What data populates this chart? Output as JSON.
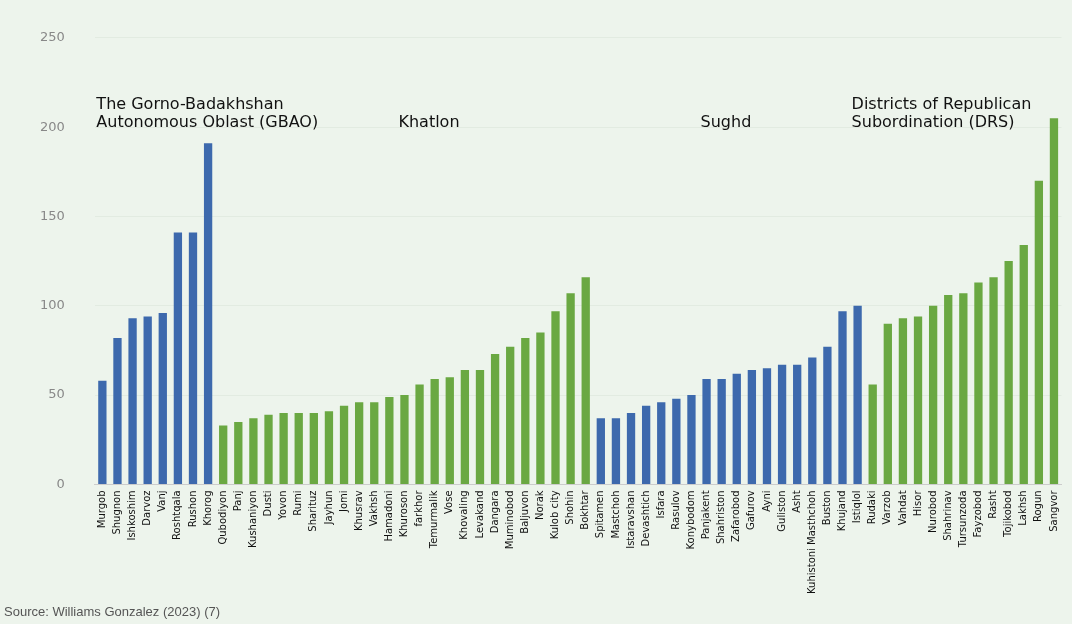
{
  "chart_data": {
    "type": "bar",
    "categories": [
      "Murgob",
      "Shugnon",
      "Ishkoshim",
      "Darvoz",
      "Vanj",
      "Roshtqala",
      "Rushon",
      "Khorog",
      "Qubodiyon",
      "Panj",
      "Kushaniyon",
      "Dusti",
      "Yovon",
      "Rumi",
      "Sharituz",
      "Jayhun",
      "Jomi",
      "Khusrav",
      "Vakhsh",
      "Hamadoni",
      "Khuroson",
      "farkhor",
      "Temurmalik",
      "Vose",
      "Khovaling",
      "Levakand",
      "Dangara",
      "Muminobod",
      "Baljuvon",
      "Norak",
      "Kulob city",
      "Shohin",
      "Bokhtar",
      "Spitamen",
      "Mastchoh",
      "Istaravshan",
      "Devashtich",
      "Isfara",
      "Rasulov",
      "Konybodom",
      "Panjakent",
      "Shahriston",
      "Zafarobod",
      "Gafurov",
      "Ayni",
      "Guliston",
      "Asht",
      "Kuhistoni Masthchoh",
      "Buston",
      "Khujand",
      "Istiqlol",
      "Rudaki",
      "Varzob",
      "Vahdat",
      "Hisor",
      "Nurobod",
      "Shahrinav",
      "Tursunzoda",
      "Fayzobod",
      "Rasht",
      "Tojikobod",
      "Lakhsh",
      "Rogun",
      "Sangvor"
    ],
    "values": [
      58,
      82,
      93,
      94,
      96,
      141,
      141,
      191,
      33,
      35,
      37,
      39,
      40,
      40,
      40,
      41,
      44,
      46,
      46,
      49,
      50,
      56,
      59,
      60,
      64,
      64,
      73,
      77,
      82,
      85,
      97,
      107,
      116,
      37,
      37,
      40,
      44,
      46,
      48,
      50,
      59,
      59,
      62,
      64,
      65,
      67,
      67,
      71,
      77,
      97,
      100,
      56,
      90,
      93,
      94,
      100,
      106,
      107,
      113,
      116,
      125,
      134,
      170,
      205
    ],
    "colors": [
      "#3d69ad",
      "#3d69ad",
      "#3d69ad",
      "#3d69ad",
      "#3d69ad",
      "#3d69ad",
      "#3d69ad",
      "#3d69ad",
      "#6aa842",
      "#6aa842",
      "#6aa842",
      "#6aa842",
      "#6aa842",
      "#6aa842",
      "#6aa842",
      "#6aa842",
      "#6aa842",
      "#6aa842",
      "#6aa842",
      "#6aa842",
      "#6aa842",
      "#6aa842",
      "#6aa842",
      "#6aa842",
      "#6aa842",
      "#6aa842",
      "#6aa842",
      "#6aa842",
      "#6aa842",
      "#6aa842",
      "#6aa842",
      "#6aa842",
      "#6aa842",
      "#3d69ad",
      "#3d69ad",
      "#3d69ad",
      "#3d69ad",
      "#3d69ad",
      "#3d69ad",
      "#3d69ad",
      "#3d69ad",
      "#3d69ad",
      "#3d69ad",
      "#3d69ad",
      "#3d69ad",
      "#3d69ad",
      "#3d69ad",
      "#3d69ad",
      "#3d69ad",
      "#3d69ad",
      "#3d69ad",
      "#6aa842",
      "#6aa842",
      "#6aa842",
      "#6aa842",
      "#6aa842",
      "#6aa842",
      "#6aa842",
      "#6aa842",
      "#6aa842",
      "#6aa842",
      "#6aa842",
      "#6aa842",
      "#6aa842"
    ],
    "ylim": [
      0,
      250
    ],
    "yticks": [
      0,
      50,
      100,
      150,
      200,
      250
    ],
    "grid": "y",
    "annotations": [
      "The Gorno-Badakhshan\nAutonomous Oblast (GBAO)",
      "Khatlon",
      "Sughd",
      "Districts of Republican\nSubordination (DRS)",
      "Source: Williams Gonzalez (2023) (7)"
    ]
  }
}
